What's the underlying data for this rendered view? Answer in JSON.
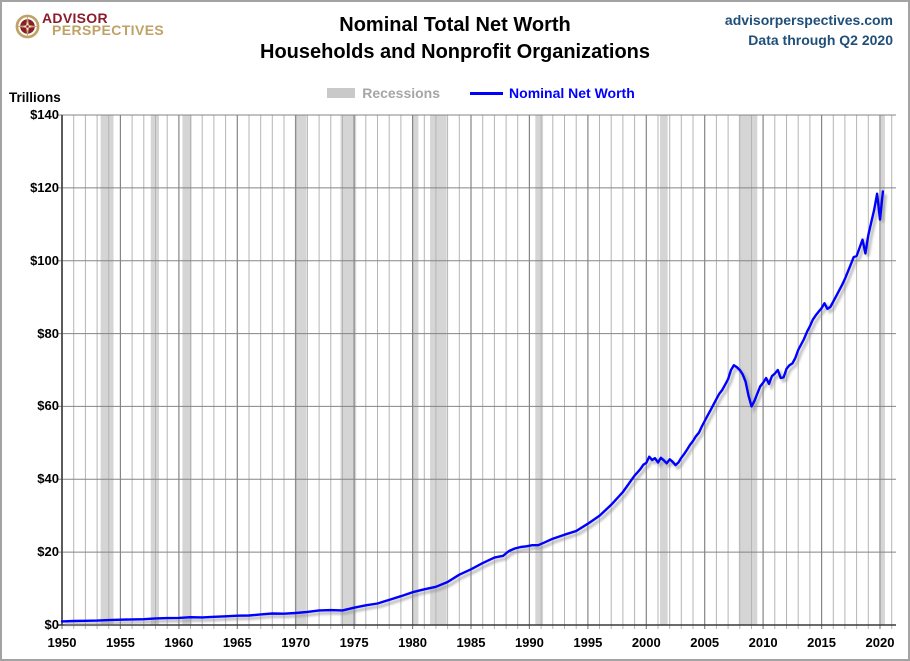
{
  "header": {
    "logo": {
      "line1": "ADVISOR",
      "line2": "PERSPECTIVES"
    },
    "site": "advisorperspectives.com",
    "data_through": "Data through Q2 2020"
  },
  "legend": {
    "recessions_label": "Recessions",
    "series_label": "Nominal Net Worth"
  },
  "colors": {
    "series_line": "#0000FF",
    "recession_band": "#D5D5D5",
    "minor_gridline": "#B5B5B5",
    "major_gridline": "#858585",
    "axis": "#3A3A3A",
    "source_text": "#1F4E79",
    "legend_gray_text": "#A6A6A6",
    "logo_maroon": "#8C1C2C",
    "logo_gold": "#BFA265"
  },
  "chart_data": {
    "type": "line",
    "title": "Nominal Total Net Worth",
    "subtitle": "Households and Nonprofit Organizations",
    "xlabel": "",
    "ylabel": "Trillions",
    "ylim": [
      0,
      140
    ],
    "xlim": [
      1950,
      2021.4
    ],
    "grid": "vertical gridline every year; horizontal gridline every $20T",
    "legend_position": "top-center",
    "y_ticks": [
      {
        "v": 0,
        "label": "$0"
      },
      {
        "v": 20,
        "label": "$20"
      },
      {
        "v": 40,
        "label": "$40"
      },
      {
        "v": 60,
        "label": "$60"
      },
      {
        "v": 80,
        "label": "$80"
      },
      {
        "v": 100,
        "label": "$100"
      },
      {
        "v": 120,
        "label": "$120"
      },
      {
        "v": 140,
        "label": "$140"
      }
    ],
    "x_ticks": [
      {
        "v": 1950,
        "label": "1950"
      },
      {
        "v": 1955,
        "label": "1955"
      },
      {
        "v": 1960,
        "label": "1960"
      },
      {
        "v": 1965,
        "label": "1965"
      },
      {
        "v": 1970,
        "label": "1970"
      },
      {
        "v": 1975,
        "label": "1975"
      },
      {
        "v": 1980,
        "label": "1980"
      },
      {
        "v": 1985,
        "label": "1985"
      },
      {
        "v": 1990,
        "label": "1990"
      },
      {
        "v": 1995,
        "label": "1995"
      },
      {
        "v": 2000,
        "label": "2000"
      },
      {
        "v": 2005,
        "label": "2005"
      },
      {
        "v": 2010,
        "label": "2010"
      },
      {
        "v": 2015,
        "label": "2015"
      },
      {
        "v": 2020,
        "label": "2020"
      }
    ],
    "recessions": {
      "label": "Recessions",
      "color": "#D5D5D5",
      "bands": [
        [
          1953.3,
          1954.4
        ],
        [
          1957.6,
          1958.3
        ],
        [
          1960.3,
          1961.1
        ],
        [
          1969.92,
          1970.92
        ],
        [
          1973.83,
          1975.17
        ],
        [
          1980.0,
          1980.5
        ],
        [
          1981.5,
          1982.92
        ],
        [
          1990.5,
          1991.17
        ],
        [
          2001.17,
          2001.83
        ],
        [
          2007.92,
          2009.5
        ],
        [
          2020.08,
          2020.42
        ]
      ]
    },
    "series": [
      {
        "name": "Nominal Net Worth",
        "color": "#0000FF",
        "units": "trillions of dollars",
        "points": [
          [
            1950,
            1.0
          ],
          [
            1951,
            1.1
          ],
          [
            1952,
            1.15
          ],
          [
            1953,
            1.2
          ],
          [
            1954,
            1.35
          ],
          [
            1955,
            1.45
          ],
          [
            1956,
            1.55
          ],
          [
            1957,
            1.6
          ],
          [
            1958,
            1.8
          ],
          [
            1959,
            1.9
          ],
          [
            1960,
            1.95
          ],
          [
            1961,
            2.15
          ],
          [
            1962,
            2.1
          ],
          [
            1963,
            2.25
          ],
          [
            1964,
            2.4
          ],
          [
            1965,
            2.55
          ],
          [
            1966,
            2.6
          ],
          [
            1967,
            2.9
          ],
          [
            1968,
            3.15
          ],
          [
            1969,
            3.1
          ],
          [
            1970,
            3.3
          ],
          [
            1971,
            3.6
          ],
          [
            1972,
            4.0
          ],
          [
            1973,
            4.1
          ],
          [
            1974,
            4.0
          ],
          [
            1975,
            4.75
          ],
          [
            1976,
            5.4
          ],
          [
            1977,
            5.9
          ],
          [
            1978,
            6.9
          ],
          [
            1979,
            7.9
          ],
          [
            1980,
            9.0
          ],
          [
            1981,
            9.8
          ],
          [
            1982,
            10.5
          ],
          [
            1983,
            11.8
          ],
          [
            1984,
            13.8
          ],
          [
            1985,
            15.3
          ],
          [
            1986,
            17.0
          ],
          [
            1987,
            18.5
          ],
          [
            1987.75,
            19.0
          ],
          [
            1988.25,
            20.3
          ],
          [
            1988.75,
            21.0
          ],
          [
            1989.25,
            21.4
          ],
          [
            1989.75,
            21.6
          ],
          [
            1990.25,
            21.9
          ],
          [
            1990.75,
            21.9
          ],
          [
            1991.25,
            22.6
          ],
          [
            1992,
            23.7
          ],
          [
            1993,
            24.8
          ],
          [
            1994,
            25.8
          ],
          [
            1995,
            27.8
          ],
          [
            1996,
            30.0
          ],
          [
            1997,
            33.0
          ],
          [
            1998,
            36.5
          ],
          [
            1999,
            41.0
          ],
          [
            1999.5,
            42.8
          ],
          [
            1999.75,
            44.0
          ],
          [
            2000,
            44.5
          ],
          [
            2000.25,
            46.2
          ],
          [
            2000.5,
            45.3
          ],
          [
            2000.75,
            45.8
          ],
          [
            2001,
            44.6
          ],
          [
            2001.25,
            45.9
          ],
          [
            2001.5,
            45.2
          ],
          [
            2001.75,
            44.4
          ],
          [
            2002,
            45.5
          ],
          [
            2002.25,
            44.8
          ],
          [
            2002.5,
            43.9
          ],
          [
            2002.75,
            44.6
          ],
          [
            2003,
            45.9
          ],
          [
            2003.25,
            47.0
          ],
          [
            2003.5,
            48.2
          ],
          [
            2003.75,
            49.5
          ],
          [
            2004,
            50.5
          ],
          [
            2004.25,
            51.8
          ],
          [
            2004.5,
            52.8
          ],
          [
            2004.75,
            54.5
          ],
          [
            2005,
            56.0
          ],
          [
            2005.25,
            57.5
          ],
          [
            2005.5,
            59.0
          ],
          [
            2005.75,
            60.5
          ],
          [
            2006,
            62.0
          ],
          [
            2006.25,
            63.5
          ],
          [
            2006.5,
            64.5
          ],
          [
            2006.75,
            66.0
          ],
          [
            2007,
            67.5
          ],
          [
            2007.25,
            70.0
          ],
          [
            2007.5,
            71.3
          ],
          [
            2007.75,
            70.8
          ],
          [
            2008,
            70.0
          ],
          [
            2008.25,
            68.8
          ],
          [
            2008.5,
            66.8
          ],
          [
            2008.75,
            63.0
          ],
          [
            2009,
            60.0
          ],
          [
            2009.25,
            61.5
          ],
          [
            2009.5,
            63.5
          ],
          [
            2009.75,
            65.5
          ],
          [
            2010,
            66.5
          ],
          [
            2010.25,
            67.8
          ],
          [
            2010.5,
            66.2
          ],
          [
            2010.75,
            68.3
          ],
          [
            2011,
            69.0
          ],
          [
            2011.25,
            70.0
          ],
          [
            2011.5,
            67.8
          ],
          [
            2011.75,
            68.0
          ],
          [
            2012,
            70.3
          ],
          [
            2012.25,
            71.3
          ],
          [
            2012.5,
            71.8
          ],
          [
            2012.75,
            73.3
          ],
          [
            2013,
            75.5
          ],
          [
            2013.25,
            77.0
          ],
          [
            2013.5,
            78.5
          ],
          [
            2013.75,
            80.5
          ],
          [
            2014,
            82.0
          ],
          [
            2014.25,
            83.8
          ],
          [
            2014.5,
            85.0
          ],
          [
            2014.75,
            86.0
          ],
          [
            2015,
            87.0
          ],
          [
            2015.25,
            88.3
          ],
          [
            2015.5,
            86.8
          ],
          [
            2015.75,
            87.3
          ],
          [
            2016,
            88.8
          ],
          [
            2016.25,
            90.3
          ],
          [
            2016.5,
            91.8
          ],
          [
            2016.75,
            93.3
          ],
          [
            2017,
            95.0
          ],
          [
            2017.25,
            97.0
          ],
          [
            2017.5,
            99.0
          ],
          [
            2017.75,
            101.0
          ],
          [
            2018,
            101.3
          ],
          [
            2018.25,
            103.5
          ],
          [
            2018.5,
            105.8
          ],
          [
            2018.75,
            102.0
          ],
          [
            2019,
            107.0
          ],
          [
            2019.25,
            110.5
          ],
          [
            2019.5,
            114.0
          ],
          [
            2019.75,
            118.4
          ],
          [
            2020,
            111.3
          ],
          [
            2020.25,
            119.0
          ]
        ]
      }
    ]
  }
}
